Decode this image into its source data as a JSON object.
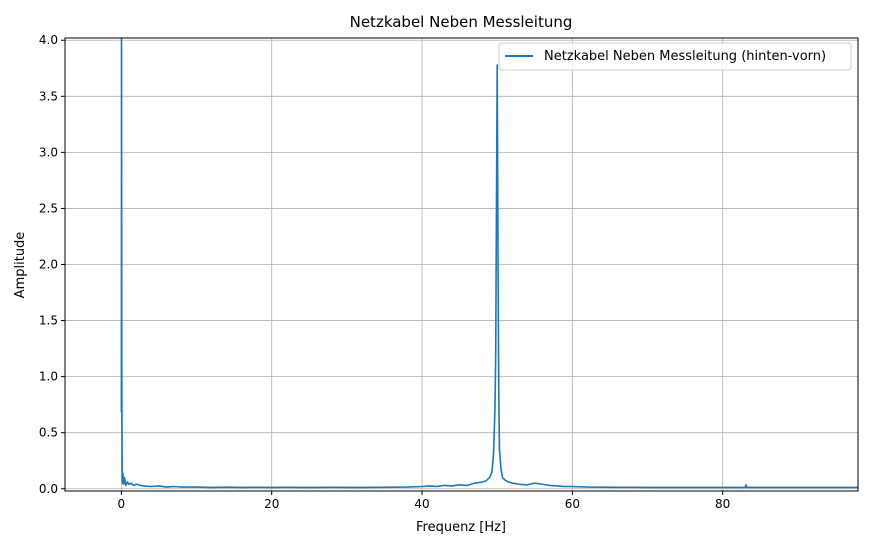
{
  "chart_data": {
    "type": "line",
    "title": "Netzkabel Neben Messleitung",
    "xlabel": "Frequenz [Hz]",
    "ylabel": "Amplitude",
    "xlim": [
      -7.5,
      98.0
    ],
    "ylim": [
      -0.02,
      4.02
    ],
    "xticks": [
      0,
      20,
      40,
      60,
      80
    ],
    "yticks": [
      0.0,
      0.5,
      1.0,
      1.5,
      2.0,
      2.5,
      3.0,
      3.5,
      4.0
    ],
    "xtick_labels": [
      "0",
      "20",
      "40",
      "60",
      "80"
    ],
    "ytick_labels": [
      "0.0",
      "0.5",
      "1.0",
      "1.5",
      "2.0",
      "2.5",
      "3.0",
      "3.5",
      "4.0"
    ],
    "grid": true,
    "legend_position": "top-right",
    "series": [
      {
        "name": "Netzkabel Neben Messleitung (hinten-vorn)",
        "color": "#1f77b4",
        "x": [
          0,
          0.02,
          0.05,
          0.1,
          0.15,
          0.2,
          0.3,
          0.4,
          0.6,
          0.8,
          1.0,
          1.3,
          1.6,
          2.0,
          2.5,
          3,
          4,
          5,
          6,
          7,
          8,
          10,
          12,
          14,
          16,
          18,
          20,
          22,
          24,
          26,
          28,
          30,
          32,
          34,
          36,
          38,
          40,
          41,
          42,
          43,
          44,
          45,
          46,
          47,
          48,
          48.5,
          49,
          49.3,
          49.5,
          49.7,
          49.8,
          49.9,
          50.0,
          50.1,
          50.2,
          50.3,
          50.5,
          50.7,
          51,
          51.5,
          52,
          53,
          54,
          55,
          56,
          57,
          58,
          59,
          60,
          62,
          64,
          66,
          68,
          70,
          72,
          74,
          76,
          78,
          80,
          82,
          83,
          83.1,
          83.2,
          84,
          86,
          88,
          90,
          92,
          94,
          96,
          98
        ],
        "y": [
          0.68,
          4.02,
          1.2,
          0.18,
          0.05,
          0.14,
          0.04,
          0.1,
          0.03,
          0.06,
          0.04,
          0.05,
          0.03,
          0.04,
          0.03,
          0.025,
          0.02,
          0.025,
          0.015,
          0.02,
          0.015,
          0.015,
          0.012,
          0.014,
          0.012,
          0.013,
          0.012,
          0.013,
          0.012,
          0.012,
          0.013,
          0.012,
          0.012,
          0.013,
          0.014,
          0.015,
          0.02,
          0.025,
          0.02,
          0.03,
          0.025,
          0.035,
          0.03,
          0.05,
          0.06,
          0.07,
          0.1,
          0.15,
          0.3,
          0.7,
          1.2,
          2.5,
          3.78,
          2.2,
          0.9,
          0.35,
          0.18,
          0.1,
          0.08,
          0.06,
          0.05,
          0.04,
          0.035,
          0.05,
          0.04,
          0.03,
          0.025,
          0.02,
          0.02,
          0.015,
          0.014,
          0.013,
          0.013,
          0.012,
          0.012,
          0.012,
          0.012,
          0.012,
          0.012,
          0.012,
          0.012,
          0.035,
          0.012,
          0.012,
          0.012,
          0.012,
          0.012,
          0.012,
          0.012,
          0.012,
          0.012
        ]
      }
    ]
  }
}
